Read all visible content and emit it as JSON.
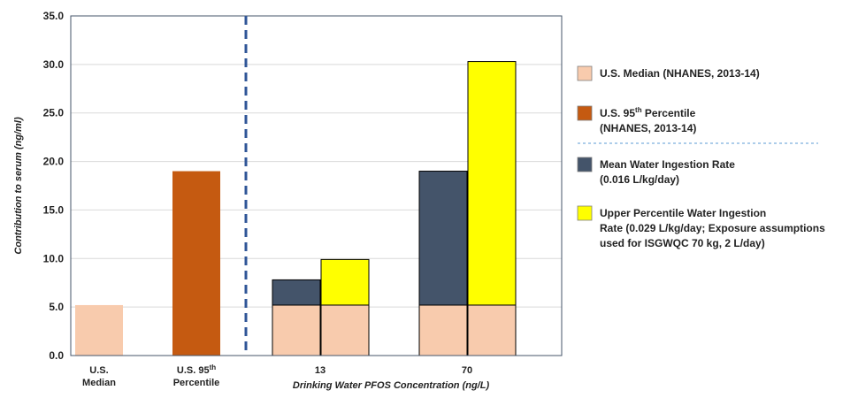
{
  "chart_data": {
    "type": "bar",
    "stacked": true,
    "ylabel": "Contribution to serum  (ng/ml)",
    "xlabel": "Drinking Water PFOS Concentration  (ng/L)",
    "ylim": [
      0,
      35
    ],
    "yticks": [
      "0.0",
      "5.0",
      "10.0",
      "15.0",
      "20.0",
      "25.0",
      "30.0",
      "35.0"
    ],
    "grid": true,
    "legend_position": "right",
    "categories": [
      {
        "lines": [
          "U.S.",
          "Median"
        ]
      },
      {
        "lines": [
          "U.S. 95",
          "Percentile"
        ],
        "sup": "th"
      },
      {
        "lines": [
          "13"
        ]
      },
      {
        "lines": [
          "70"
        ]
      }
    ],
    "bars": [
      {
        "category": 0,
        "segments": [
          {
            "series": 0,
            "value": 5.2
          }
        ]
      },
      {
        "category": 1,
        "segments": [
          {
            "series": 1,
            "value": 19.0
          }
        ]
      },
      {
        "category": 2,
        "segments": [
          {
            "series": 0,
            "value": 5.2
          },
          {
            "series": 2,
            "value": 2.6
          }
        ]
      },
      {
        "category": 2,
        "segments": [
          {
            "series": 0,
            "value": 5.2
          },
          {
            "series": 3,
            "value": 4.7
          }
        ]
      },
      {
        "category": 3,
        "segments": [
          {
            "series": 0,
            "value": 5.2
          },
          {
            "series": 2,
            "value": 13.8
          }
        ]
      },
      {
        "category": 3,
        "segments": [
          {
            "series": 0,
            "value": 5.2
          },
          {
            "series": 3,
            "value": 25.1
          }
        ]
      }
    ],
    "series": [
      {
        "name": "U.S. Median (NHANES, 2013-14)",
        "lines": [
          "U.S. Median (NHANES, 2013-14)"
        ],
        "color": "#F8CBAD"
      },
      {
        "name": "U.S. 95th Percentile (NHANES, 2013-14)",
        "lines": [
          "U.S. 95",
          "(NHANES, 2013-14)"
        ],
        "sup": "th",
        "line1_tail": " Percentile",
        "color": "#C55A11"
      },
      {
        "name": "Mean Water Ingestion Rate (0.016 L/kg/day)",
        "lines": [
          "Mean Water Ingestion Rate",
          "(0.016 L/kg/day)"
        ],
        "color": "#44546A"
      },
      {
        "name": "Upper Percentile Water Ingestion Rate (0.029 L/kg/day; Exposure assumptions used for ISGWQC 70 kg, 2 L/day)",
        "lines": [
          "Upper Percentile Water Ingestion",
          "Rate (0.029 L/kg/day;  Exposure assumptions",
          "used for ISGWQC 70 kg, 2 L/day)"
        ],
        "color": "#FFFF00"
      }
    ]
  }
}
